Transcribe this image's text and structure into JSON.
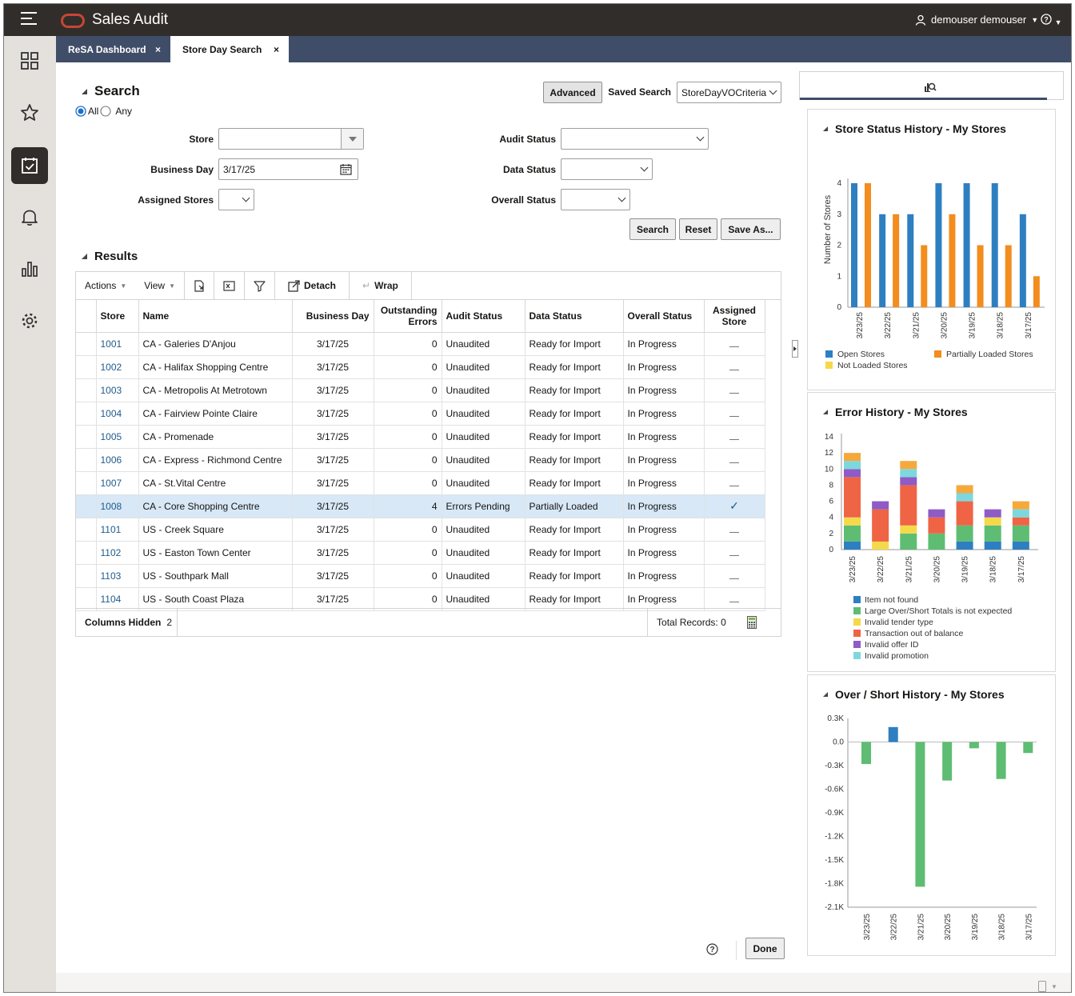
{
  "header": {
    "app_title": "Sales Audit",
    "user_name": "demouser demouser"
  },
  "nav": {
    "items": [
      "dashboard",
      "favorites",
      "tasks",
      "notifications",
      "reports",
      "settings"
    ]
  },
  "tabs": [
    {
      "label": "ReSA Dashboard",
      "close": "×"
    },
    {
      "label": "Store Day Search",
      "close": "×"
    }
  ],
  "search": {
    "title": "Search",
    "match_all": "All",
    "match_any": "Any",
    "advanced": "Advanced",
    "saved_search_label": "Saved Search",
    "saved_search_value": "StoreDayVOCriteria",
    "store_label": "Store",
    "store_value": "",
    "business_day_label": "Business Day",
    "business_day_value": "3/17/25",
    "assigned_stores_label": "Assigned Stores",
    "audit_status_label": "Audit Status",
    "data_status_label": "Data Status",
    "overall_status_label": "Overall Status",
    "search_button": "Search",
    "reset_button": "Reset",
    "save_as_button": "Save As..."
  },
  "results": {
    "title": "Results",
    "toolbar": {
      "actions": "Actions",
      "view": "View",
      "detach": "Detach",
      "wrap": "Wrap"
    },
    "columns": [
      "Store",
      "Name",
      "Business Day",
      "Outstanding Errors",
      "Audit Status",
      "Data Status",
      "Overall Status",
      "Assigned Store"
    ],
    "rows": [
      {
        "store": "1001",
        "name": "CA - Galeries D'Anjou",
        "day": "3/17/25",
        "errors": "0",
        "audit": "Unaudited",
        "data": "Ready for Import",
        "overall": "In Progress",
        "assigned": false
      },
      {
        "store": "1002",
        "name": "CA - Halifax Shopping Centre",
        "day": "3/17/25",
        "errors": "0",
        "audit": "Unaudited",
        "data": "Ready for Import",
        "overall": "In Progress",
        "assigned": false
      },
      {
        "store": "1003",
        "name": "CA - Metropolis At Metrotown",
        "day": "3/17/25",
        "errors": "0",
        "audit": "Unaudited",
        "data": "Ready for Import",
        "overall": "In Progress",
        "assigned": false
      },
      {
        "store": "1004",
        "name": "CA - Fairview Pointe Claire",
        "day": "3/17/25",
        "errors": "0",
        "audit": "Unaudited",
        "data": "Ready for Import",
        "overall": "In Progress",
        "assigned": false
      },
      {
        "store": "1005",
        "name": "CA - Promenade",
        "day": "3/17/25",
        "errors": "0",
        "audit": "Unaudited",
        "data": "Ready for Import",
        "overall": "In Progress",
        "assigned": false
      },
      {
        "store": "1006",
        "name": "CA - Express - Richmond Centre",
        "day": "3/17/25",
        "errors": "0",
        "audit": "Unaudited",
        "data": "Ready for Import",
        "overall": "In Progress",
        "assigned": false
      },
      {
        "store": "1007",
        "name": "CA - St.Vital Centre",
        "day": "3/17/25",
        "errors": "0",
        "audit": "Unaudited",
        "data": "Ready for Import",
        "overall": "In Progress",
        "assigned": false
      },
      {
        "store": "1008",
        "name": "CA - Core Shopping Centre",
        "day": "3/17/25",
        "errors": "4",
        "audit": "Errors Pending",
        "data": "Partially Loaded",
        "overall": "In Progress",
        "assigned": true,
        "selected": true
      },
      {
        "store": "1101",
        "name": "US - Creek Square",
        "day": "3/17/25",
        "errors": "0",
        "audit": "Unaudited",
        "data": "Ready for Import",
        "overall": "In Progress",
        "assigned": false
      },
      {
        "store": "1102",
        "name": "US - Easton Town Center",
        "day": "3/17/25",
        "errors": "0",
        "audit": "Unaudited",
        "data": "Ready for Import",
        "overall": "In Progress",
        "assigned": false
      },
      {
        "store": "1103",
        "name": "US - Southpark Mall",
        "day": "3/17/25",
        "errors": "0",
        "audit": "Unaudited",
        "data": "Ready for Import",
        "overall": "In Progress",
        "assigned": false
      },
      {
        "store": "1104",
        "name": "US - South Coast Plaza",
        "day": "3/17/25",
        "errors": "0",
        "audit": "Unaudited",
        "data": "Ready for Import",
        "overall": "In Progress",
        "assigned": false
      }
    ],
    "columns_hidden_label": "Columns Hidden",
    "columns_hidden_value": "2",
    "total_records": "Total Records: 0"
  },
  "footer": {
    "done_button": "Done"
  },
  "chart_data": [
    {
      "type": "bar",
      "title": "Store Status History - My Stores",
      "ylabel": "Number of Stores",
      "ylim": [
        0,
        4
      ],
      "categories": [
        "3/23/25",
        "3/22/25",
        "3/21/25",
        "3/20/25",
        "3/19/25",
        "3/18/25",
        "3/17/25"
      ],
      "series": [
        {
          "name": "Open Stores",
          "color": "#2e7fc1",
          "values": [
            4,
            3,
            3,
            4,
            4,
            4,
            3
          ]
        },
        {
          "name": "Partially Loaded Stores",
          "color": "#f28d1e",
          "values": [
            4,
            3,
            2,
            3,
            2,
            2,
            1
          ]
        },
        {
          "name": "Not Loaded Stores",
          "color": "#f4d94a",
          "values": [
            0,
            0,
            0,
            0,
            0,
            0,
            0
          ]
        }
      ]
    },
    {
      "type": "bar",
      "stacked": true,
      "title": "Error History - My Stores",
      "ylim": [
        0,
        14
      ],
      "categories": [
        "3/23/25",
        "3/22/25",
        "3/21/25",
        "3/20/25",
        "3/19/25",
        "3/18/25",
        "3/17/25"
      ],
      "series": [
        {
          "name": "Item not found",
          "color": "#2e7fc1",
          "values": [
            1,
            0,
            0,
            0,
            1,
            1,
            1
          ]
        },
        {
          "name": "Large Over/Short Totals is not expected",
          "color": "#5ebd73",
          "values": [
            2,
            0,
            2,
            2,
            2,
            2,
            2
          ]
        },
        {
          "name": "Invalid tender type",
          "color": "#f4d94a",
          "values": [
            1,
            1,
            1,
            0,
            0,
            1,
            0
          ]
        },
        {
          "name": "Transaction out of balance",
          "color": "#ee6445",
          "values": [
            5,
            4,
            5,
            2,
            3,
            0,
            1
          ]
        },
        {
          "name": "Invalid offer ID",
          "color": "#8e5bc7",
          "values": [
            1,
            1,
            1,
            1,
            0,
            1,
            0
          ]
        },
        {
          "name": "Invalid promotion",
          "color": "#7dd8de",
          "values": [
            1,
            0,
            1,
            0,
            1,
            0,
            1
          ]
        },
        {
          "name": "",
          "color": "#f5a93c",
          "values": [
            1,
            0,
            1,
            0,
            1,
            0,
            1
          ]
        }
      ]
    },
    {
      "type": "bar",
      "title": "Over / Short History - My Stores",
      "ylim": [
        -2.1,
        0.3
      ],
      "yticks": [
        "0.3K",
        "0.0",
        "-0.3K",
        "-0.6K",
        "-0.9K",
        "-1.2K",
        "-1.5K",
        "-1.8K",
        "-2.1K"
      ],
      "categories": [
        "3/23/25",
        "3/22/25",
        "3/21/25",
        "3/20/25",
        "3/19/25",
        "3/18/25",
        "3/17/25"
      ],
      "series": [
        {
          "values": [
            -0.28,
            0.19,
            -1.84,
            -0.49,
            -0.08,
            -0.47,
            -0.14
          ],
          "colors": [
            "#5ebd73",
            "#2e7fc1",
            "#5ebd73",
            "#5ebd73",
            "#5ebd73",
            "#5ebd73",
            "#5ebd73"
          ]
        }
      ]
    }
  ]
}
